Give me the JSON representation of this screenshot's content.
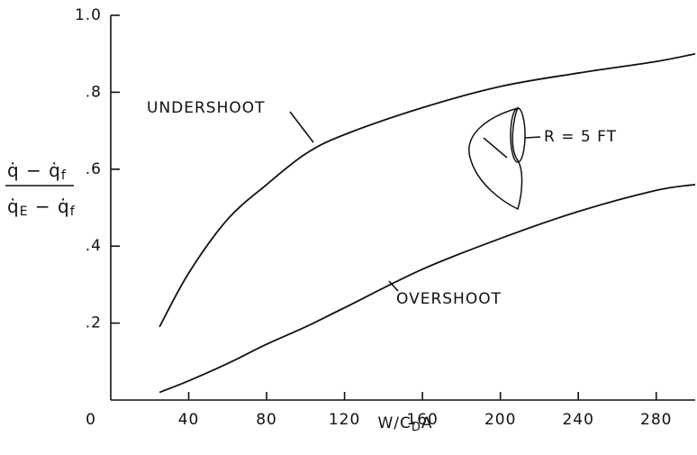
{
  "chart_data": {
    "type": "line",
    "x_label_parts": [
      "W/C",
      "D",
      "A"
    ],
    "y_label_parts": {
      "numerator": [
        "q̇ − q̇",
        "f"
      ],
      "denominator": [
        "q̇",
        "E",
        " − q̇",
        "f"
      ]
    },
    "annotation": "R = 5 FT",
    "x": [
      25,
      40,
      60,
      80,
      100,
      120,
      160,
      200,
      240,
      280,
      300
    ],
    "series": [
      {
        "name": "UNDERSHOOT",
        "color": "#111111",
        "values": [
          0.19,
          0.33,
          0.47,
          0.56,
          0.64,
          0.69,
          0.76,
          0.815,
          0.85,
          0.88,
          0.9
        ]
      },
      {
        "name": "OVERSHOOT",
        "color": "#111111",
        "values": [
          0.02,
          0.05,
          0.095,
          0.145,
          0.19,
          0.24,
          0.34,
          0.42,
          0.49,
          0.545,
          0.56
        ]
      }
    ],
    "xlim": [
      0,
      300
    ],
    "ylim": [
      0,
      1
    ],
    "xticks": [
      0,
      40,
      80,
      120,
      160,
      200,
      240,
      280
    ],
    "yticks": [
      {
        "value": 0.2,
        "label": ".2"
      },
      {
        "value": 0.4,
        "label": ".4"
      },
      {
        "value": 0.6,
        "label": ".6"
      },
      {
        "value": 0.8,
        "label": ".8"
      },
      {
        "value": 1.0,
        "label": "1.0"
      }
    ],
    "grid": false
  }
}
